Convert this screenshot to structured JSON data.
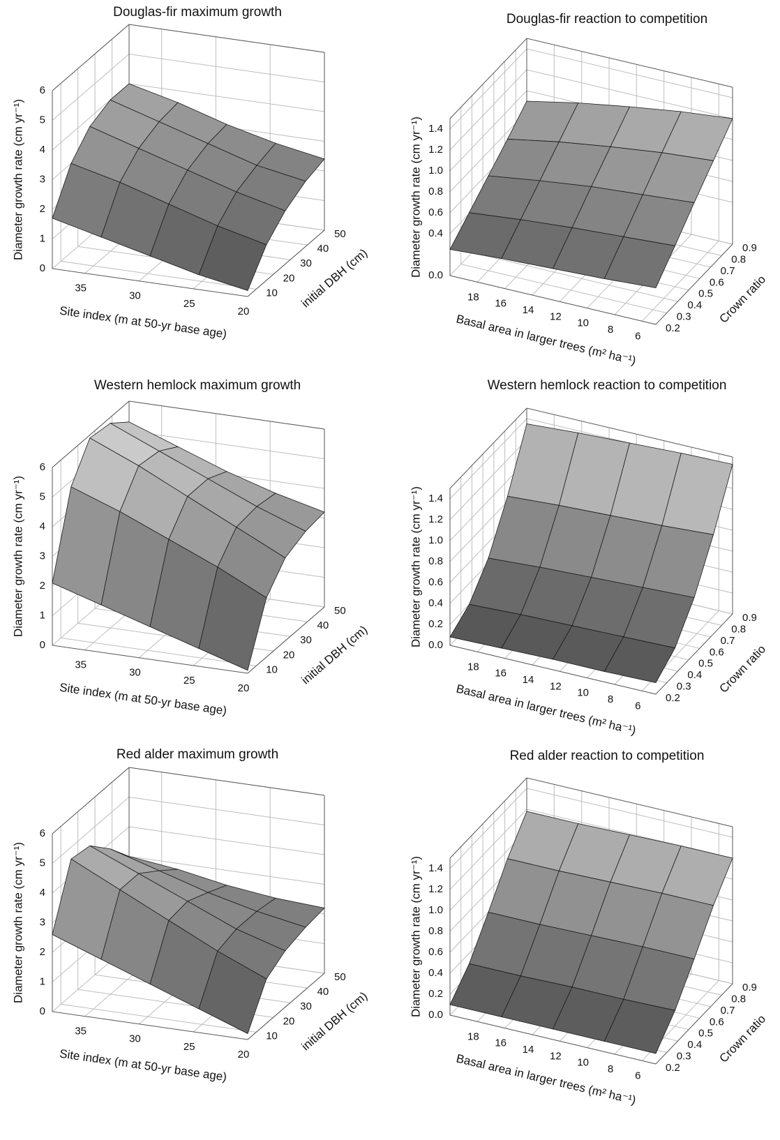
{
  "chart_data": [
    {
      "type": "surface",
      "title": "Douglas-fir maximum growth",
      "xlabel": "Site index (m at 50-yr base age)",
      "ylabel": "initial DBH (cm)",
      "zlabel": "Diameter growth rate (cm yr⁻¹)",
      "x": [
        38,
        33.5,
        29,
        24.5,
        20
      ],
      "y": [
        5,
        16,
        27,
        39,
        50
      ],
      "z": [
        [
          1.7,
          1.3,
          0.9,
          0.5,
          0.2
        ],
        [
          3.0,
          2.6,
          2.1,
          1.6,
          1.2
        ],
        [
          3.7,
          3.2,
          2.7,
          2.2,
          1.8
        ],
        [
          4.0,
          3.5,
          3.0,
          2.5,
          2.2
        ],
        [
          4.0,
          3.6,
          3.1,
          2.7,
          2.4
        ]
      ],
      "xlim": [
        38,
        20
      ],
      "xticks": [
        35,
        30,
        25,
        20
      ],
      "ylim": [
        5,
        50
      ],
      "yticks": [
        10,
        20,
        30,
        40,
        50
      ],
      "zlim": [
        0,
        6
      ],
      "zticks": [
        0,
        1,
        2,
        3,
        4,
        5,
        6
      ],
      "colormap": [
        "#4a4a4a",
        "#d6d6d6"
      ],
      "grid": true
    },
    {
      "type": "surface",
      "title": "Douglas-fir reaction to competition",
      "xlabel": "Basal area in larger trees (m² ha⁻¹)",
      "ylabel": "Crown ratio",
      "zlabel": "Diameter growth rate (cm yr⁻¹)",
      "x": [
        20,
        16.25,
        12.5,
        8.75,
        5
      ],
      "y": [
        0.2,
        0.375,
        0.55,
        0.725,
        0.9
      ],
      "z": [
        [
          0.25,
          0.28,
          0.3,
          0.32,
          0.35
        ],
        [
          0.41,
          0.46,
          0.5,
          0.53,
          0.56
        ],
        [
          0.57,
          0.64,
          0.7,
          0.74,
          0.78
        ],
        [
          0.73,
          0.82,
          0.89,
          0.95,
          0.99
        ],
        [
          0.9,
          1.0,
          1.08,
          1.15,
          1.2
        ]
      ],
      "xlim": [
        20,
        5
      ],
      "xticks": [
        18,
        16,
        14,
        12,
        10,
        8,
        6
      ],
      "ylim": [
        0.2,
        0.9
      ],
      "yticks": [
        0.2,
        0.3,
        0.4,
        0.5,
        0.6,
        0.7,
        0.8,
        0.9
      ],
      "zlim": [
        0,
        1.5
      ],
      "zticks": [
        {
          "value": 0,
          "label": "0.0"
        },
        0.4,
        0.6,
        0.8,
        {
          "value": 1,
          "label": "1.0"
        },
        1.2,
        1.4
      ],
      "colormap": [
        "#4a4a4a",
        "#d6d6d6"
      ],
      "grid": true
    },
    {
      "type": "surface",
      "title": "Western hemlock maximum growth",
      "xlabel": "Site index (m at 50-yr base age)",
      "ylabel": "initial DBH (cm)",
      "zlabel": "Diameter growth rate (cm yr⁻¹)",
      "x": [
        38,
        33.5,
        29,
        24.5,
        20
      ],
      "y": [
        5,
        16,
        27,
        39,
        50
      ],
      "z": [
        [
          2.1,
          1.6,
          1.1,
          0.6,
          0.1
        ],
        [
          4.8,
          4.2,
          3.5,
          2.8,
          2.0
        ],
        [
          5.9,
          5.2,
          4.4,
          3.6,
          2.8
        ],
        [
          5.8,
          5.1,
          4.4,
          3.7,
          3.1
        ],
        [
          5.3,
          4.7,
          4.1,
          3.6,
          3.2
        ]
      ],
      "xlim": [
        38,
        20
      ],
      "xticks": [
        35,
        30,
        25,
        20
      ],
      "ylim": [
        5,
        50
      ],
      "yticks": [
        10,
        20,
        30,
        40,
        50
      ],
      "zlim": [
        0,
        6
      ],
      "zticks": [
        0,
        1,
        2,
        3,
        4,
        5,
        6
      ],
      "colormap": [
        "#4a4a4a",
        "#d6d6d6"
      ],
      "grid": true
    },
    {
      "type": "surface",
      "title": "Western hemlock reaction to competition",
      "xlabel": "Basal area in larger trees (m² ha⁻¹)",
      "ylabel": "Crown ratio",
      "zlabel": "Diameter growth rate (cm yr⁻¹)",
      "x": [
        20,
        16.25,
        12.5,
        8.75,
        5
      ],
      "y": [
        0.2,
        0.375,
        0.55,
        0.725,
        0.9
      ],
      "z": [
        [
          0.08,
          0.09,
          0.1,
          0.1,
          0.11
        ],
        [
          0.2,
          0.22,
          0.23,
          0.24,
          0.25
        ],
        [
          0.45,
          0.48,
          0.5,
          0.52,
          0.54
        ],
        [
          0.85,
          0.88,
          0.9,
          0.92,
          0.95
        ],
        [
          1.35,
          1.38,
          1.4,
          1.42,
          1.43
        ]
      ],
      "xlim": [
        20,
        5
      ],
      "xticks": [
        18,
        16,
        14,
        12,
        10,
        8,
        6
      ],
      "ylim": [
        0.2,
        0.9
      ],
      "yticks": [
        0.2,
        0.3,
        0.4,
        0.5,
        0.6,
        0.7,
        0.8,
        0.9
      ],
      "zlim": [
        0,
        1.5
      ],
      "zticks": [
        {
          "value": 0,
          "label": "0.0"
        },
        0.2,
        0.4,
        0.6,
        0.8,
        {
          "value": 1,
          "label": "1.0"
        },
        1.2,
        1.4
      ],
      "colormap": [
        "#4a4a4a",
        "#d6d6d6"
      ],
      "grid": true
    },
    {
      "type": "surface",
      "title": "Red alder maximum growth",
      "xlabel": "Site index (m at 50-yr base age)",
      "ylabel": "initial DBH (cm)",
      "zlabel": "Diameter growth rate (cm yr⁻¹)",
      "x": [
        38,
        33.5,
        29,
        24.5,
        20
      ],
      "y": [
        5,
        16,
        27,
        39,
        50
      ],
      "z": [
        [
          2.6,
          2.0,
          1.4,
          0.8,
          0.2
        ],
        [
          4.6,
          3.8,
          3.0,
          2.2,
          1.5
        ],
        [
          4.5,
          3.8,
          3.1,
          2.4,
          1.9
        ],
        [
          3.8,
          3.3,
          2.8,
          2.4,
          2.1
        ],
        [
          3.0,
          2.8,
          2.5,
          2.3,
          2.2
        ]
      ],
      "xlim": [
        38,
        20
      ],
      "xticks": [
        35,
        30,
        25,
        20
      ],
      "ylim": [
        5,
        50
      ],
      "yticks": [
        10,
        20,
        30,
        40,
        50
      ],
      "zlim": [
        0,
        6
      ],
      "zticks": [
        0,
        1,
        2,
        3,
        4,
        5,
        6
      ],
      "colormap": [
        "#4a4a4a",
        "#d6d6d6"
      ],
      "grid": true
    },
    {
      "type": "surface",
      "title": "Red alder reaction to competition",
      "xlabel": "Basal area in larger trees (m² ha⁻¹)",
      "ylabel": "Crown ratio",
      "zlabel": "Diameter growth rate (cm yr⁻¹)",
      "x": [
        20,
        16.25,
        12.5,
        8.75,
        5
      ],
      "y": [
        0.2,
        0.375,
        0.55,
        0.725,
        0.9
      ],
      "z": [
        [
          0.1,
          0.1,
          0.1,
          0.1,
          0.1
        ],
        [
          0.3,
          0.3,
          0.31,
          0.31,
          0.32
        ],
        [
          0.6,
          0.6,
          0.61,
          0.62,
          0.62
        ],
        [
          0.92,
          0.92,
          0.93,
          0.94,
          0.94
        ],
        [
          1.18,
          1.18,
          1.19,
          1.2,
          1.2
        ]
      ],
      "xlim": [
        20,
        5
      ],
      "xticks": [
        18,
        16,
        14,
        12,
        10,
        8,
        6
      ],
      "ylim": [
        0.2,
        0.9
      ],
      "yticks": [
        0.2,
        0.3,
        0.4,
        0.5,
        0.6,
        0.7,
        0.8,
        0.9
      ],
      "zlim": [
        0,
        1.5
      ],
      "zticks": [
        {
          "value": 0,
          "label": "0.0"
        },
        0.2,
        0.4,
        0.6,
        0.8,
        {
          "value": 1,
          "label": "1.0"
        },
        1.2,
        1.4
      ],
      "colormap": [
        "#4a4a4a",
        "#d6d6d6"
      ],
      "grid": true
    }
  ]
}
